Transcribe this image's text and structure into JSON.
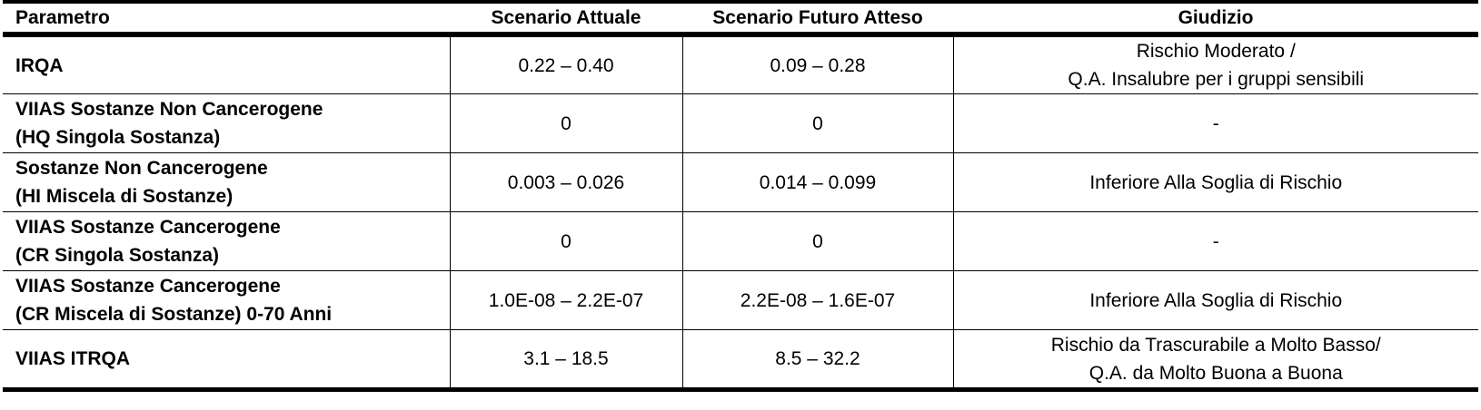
{
  "headers": {
    "param": "Parametro",
    "current": "Scenario Attuale",
    "future": "Scenario Futuro Atteso",
    "judgement": "Giudizio"
  },
  "rows": [
    {
      "param": [
        "IRQA"
      ],
      "current": "0.22 – 0.40",
      "future": "0.09 – 0.28",
      "judgement": [
        "Rischio Moderato /",
        "Q.A. Insalubre per i gruppi sensibili"
      ]
    },
    {
      "param": [
        "VIIAS Sostanze Non Cancerogene",
        "(HQ Singola Sostanza)"
      ],
      "current": "0",
      "future": "0",
      "judgement": [
        "-"
      ]
    },
    {
      "param": [
        "Sostanze Non Cancerogene",
        "(HI Miscela di Sostanze)"
      ],
      "current": "0.003 – 0.026",
      "future": "0.014 – 0.099",
      "judgement": [
        "Inferiore Alla Soglia di Rischio"
      ]
    },
    {
      "param": [
        "VIIAS Sostanze Cancerogene",
        "(CR Singola Sostanza)"
      ],
      "current": "0",
      "future": "0",
      "judgement": [
        "-"
      ]
    },
    {
      "param": [
        "VIIAS Sostanze Cancerogene",
        "(CR Miscela di Sostanze) 0-70 Anni"
      ],
      "current": "1.0E-08 – 2.2E-07",
      "future": "2.2E-08 – 1.6E-07",
      "judgement": [
        "Inferiore Alla Soglia di Rischio"
      ]
    },
    {
      "param": [
        "VIIAS ITRQA"
      ],
      "current": "3.1 – 18.5",
      "future": "8.5 – 32.2",
      "judgement": [
        "Rischio da Trascurabile a Molto Basso/",
        "Q.A. da  Molto Buona a Buona"
      ]
    }
  ]
}
